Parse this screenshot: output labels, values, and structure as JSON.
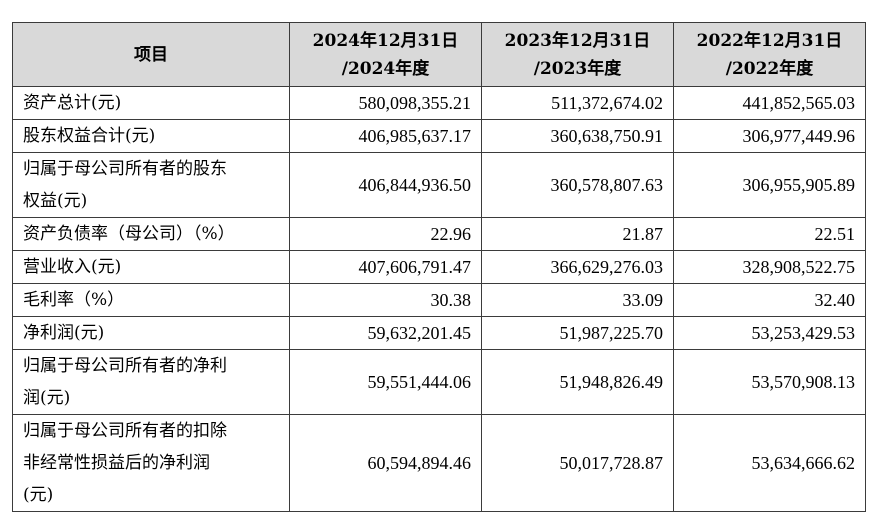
{
  "table": {
    "header": {
      "item": "项目",
      "col1": [
        "2024年12月31日",
        "/2024年度"
      ],
      "col2": [
        "2023年12月31日",
        "/2023年度"
      ],
      "col3": [
        "2022年12月31日",
        "/2022年度"
      ]
    },
    "rows": [
      {
        "label": [
          "资产总计(元)"
        ],
        "v2024": "580,098,355.21",
        "v2023": "511,372,674.02",
        "v2022": "441,852,565.03"
      },
      {
        "label": [
          "股东权益合计(元)"
        ],
        "v2024": "406,985,637.17",
        "v2023": "360,638,750.91",
        "v2022": "306,977,449.96"
      },
      {
        "label": [
          "归属于母公司所有者的股东",
          "权益(元)"
        ],
        "v2024": "406,844,936.50",
        "v2023": "360,578,807.63",
        "v2022": "306,955,905.89"
      },
      {
        "label": [
          "资产负债率（母公司）（%）"
        ],
        "v2024": "22.96",
        "v2023": "21.87",
        "v2022": "22.51"
      },
      {
        "label": [
          "营业收入(元)"
        ],
        "v2024": "407,606,791.47",
        "v2023": "366,629,276.03",
        "v2022": "328,908,522.75"
      },
      {
        "label": [
          "毛利率（%）"
        ],
        "v2024": "30.38",
        "v2023": "33.09",
        "v2022": "32.40"
      },
      {
        "label": [
          "净利润(元)"
        ],
        "v2024": "59,632,201.45",
        "v2023": "51,987,225.70",
        "v2022": "53,253,429.53"
      },
      {
        "label": [
          "归属于母公司所有者的净利",
          "润(元)"
        ],
        "v2024": "59,551,444.06",
        "v2023": "51,948,826.49",
        "v2022": "53,570,908.13"
      },
      {
        "label": [
          "归属于母公司所有者的扣除",
          "非经常性损益后的净利润",
          "(元)"
        ],
        "v2024": "60,594,894.46",
        "v2023": "50,017,728.87",
        "v2022": "53,634,666.62"
      }
    ]
  }
}
